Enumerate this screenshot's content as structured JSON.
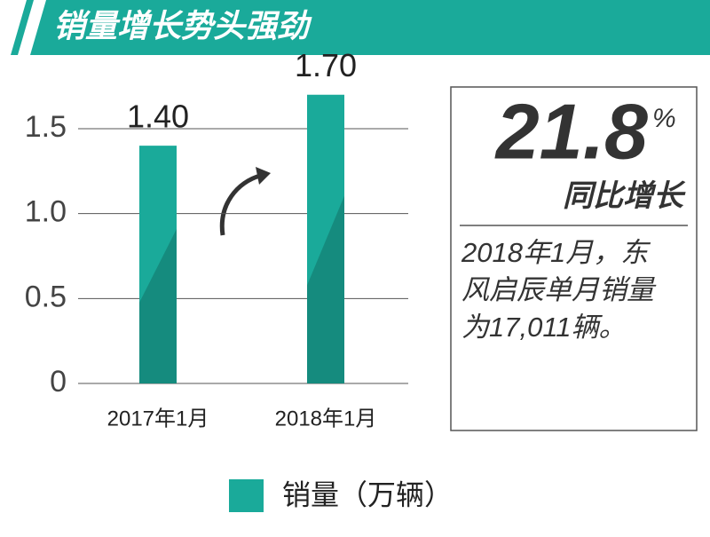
{
  "chart_data": {
    "type": "bar",
    "title": "销量增长势头强劲",
    "categories": [
      "2017年1月",
      "2018年1月"
    ],
    "series": [
      {
        "name": "销量（万辆）",
        "color": "#1aaa9a",
        "values": [
          1.4,
          1.7
        ],
        "value_labels": [
          "1.40",
          "1.70"
        ]
      }
    ],
    "ylim": [
      0,
      1.5
    ],
    "yticks": [
      0,
      0.5,
      {
        "value": 1,
        "label": "1.0"
      },
      1.5
    ],
    "grid": true,
    "annotation": {
      "value": "21.8",
      "unit": "%",
      "label": "同比增长",
      "text": [
        "2018年1月，东",
        "风启辰单月销量",
        "为17,011辆。"
      ]
    }
  }
}
